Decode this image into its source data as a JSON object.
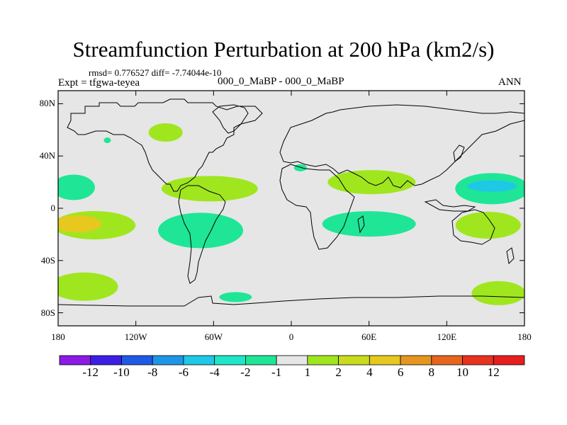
{
  "title": "Streamfunction Perturbation at 200 hPa (km2/s)",
  "stats": "rmsd= 0.776527 diff= -7.74044e-10",
  "expt": "Expt = tfgwa-teyea",
  "case": "000_0_MaBP - 000_0_MaBP",
  "season": "ANN",
  "y_ticks": [
    "80N",
    "40N",
    "0",
    "40S",
    "80S"
  ],
  "x_ticks": [
    "180",
    "120W",
    "60W",
    "0",
    "60E",
    "120E",
    "180"
  ],
  "colorbar": {
    "colors": [
      "#8b1ae6",
      "#3c1ee6",
      "#1e5ae6",
      "#1e96e6",
      "#1ec8e6",
      "#1ee6c8",
      "#1ee696",
      "#e6e6e6",
      "#a0e61e",
      "#c8dc1e",
      "#e6c81e",
      "#e6961e",
      "#e6641e",
      "#e6321e",
      "#e61e1e"
    ],
    "labels": [
      "-12",
      "-10",
      "-8",
      "-6",
      "-4",
      "-2",
      "-1",
      "1",
      "2",
      "4",
      "6",
      "8",
      "10",
      "12"
    ]
  },
  "chart_data": {
    "type": "map",
    "variable": "Streamfunction Perturbation at 200 hPa",
    "units": "km2/s",
    "lon_range": [
      -180,
      180
    ],
    "lat_range": [
      -90,
      90
    ],
    "anomalies": [
      {
        "lon": -97,
        "lat": 58,
        "level": "2"
      },
      {
        "lon": -142,
        "lat": 52,
        "level": "-2"
      },
      {
        "lon": -168,
        "lat": 16,
        "level": "-2"
      },
      {
        "lon": -63,
        "lat": 15,
        "level": "2"
      },
      {
        "lon": -152,
        "lat": -13,
        "level": "2"
      },
      {
        "lon": -165,
        "lat": -12,
        "level": "4"
      },
      {
        "lon": -70,
        "lat": -17,
        "level": "-2"
      },
      {
        "lon": 7,
        "lat": 31,
        "level": "-2"
      },
      {
        "lon": 62,
        "lat": 20,
        "level": "2"
      },
      {
        "lon": 60,
        "lat": -12,
        "level": "-2"
      },
      {
        "lon": 155,
        "lat": 15,
        "level": "-2"
      },
      {
        "lon": 155,
        "lat": 17,
        "level": "-4"
      },
      {
        "lon": 152,
        "lat": -13,
        "level": "2"
      },
      {
        "lon": -160,
        "lat": -60,
        "level": "2"
      },
      {
        "lon": 160,
        "lat": -65,
        "level": "2"
      },
      {
        "lon": -43,
        "lat": -68,
        "level": "-2"
      }
    ]
  }
}
